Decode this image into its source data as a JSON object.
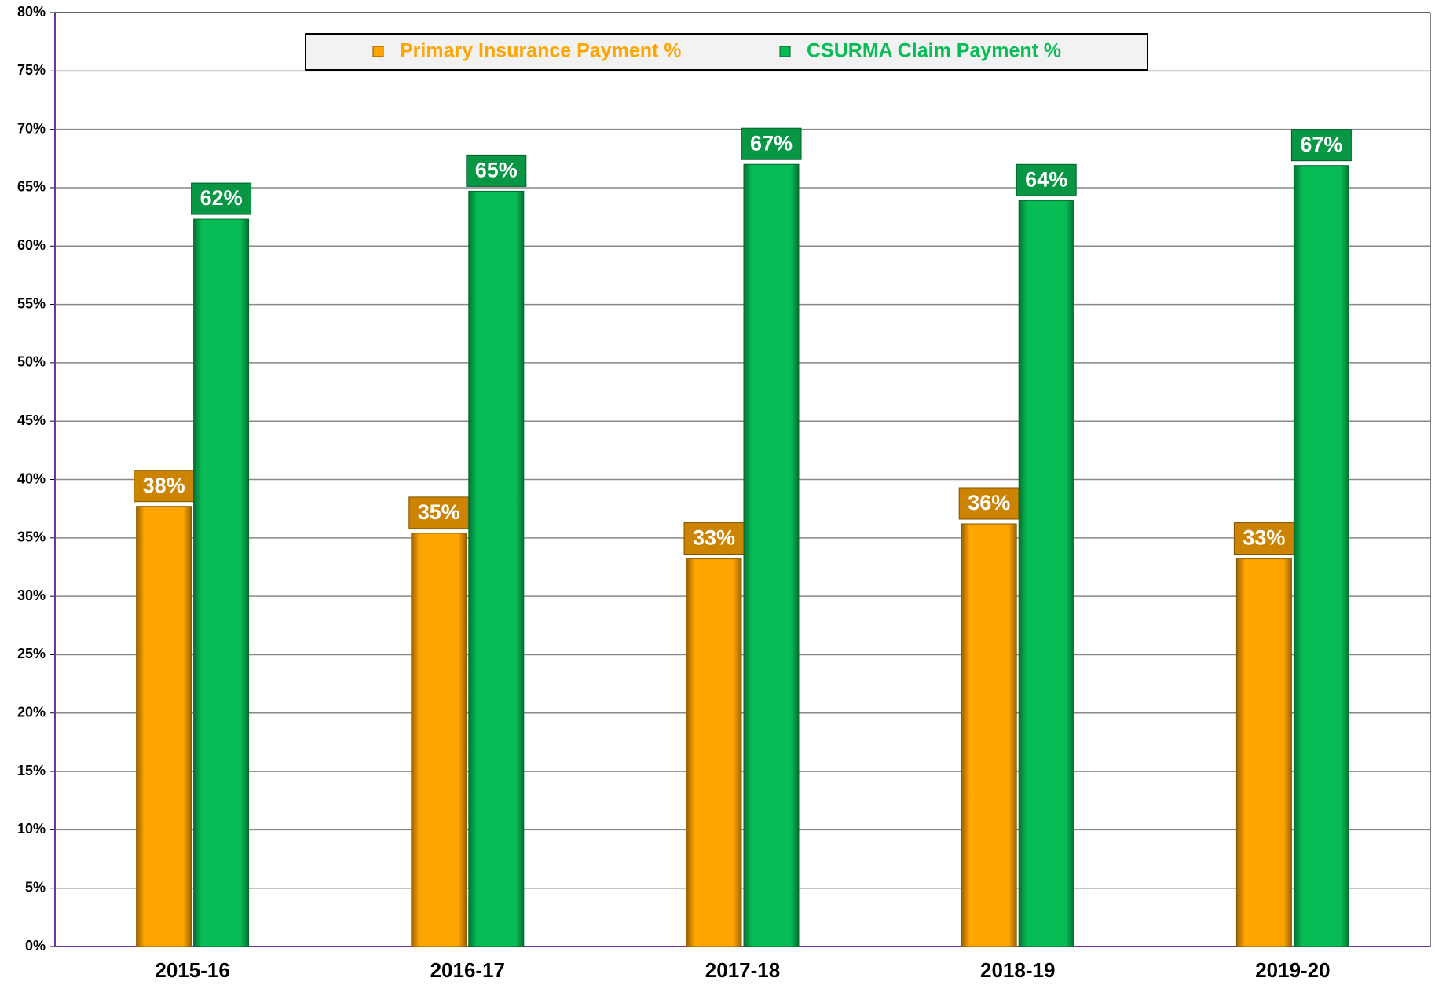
{
  "chart_data": {
    "type": "bar",
    "categories": [
      "2015-16",
      "2016-17",
      "2017-18",
      "2018-19",
      "2019-20"
    ],
    "series": [
      {
        "name": "Primary Insurance Payment %",
        "color": "#ffa500",
        "values": [
          37.7,
          35.4,
          33.2,
          36.2,
          33.2
        ],
        "value_labels": [
          "38%",
          "35%",
          "33%",
          "36%",
          "33%"
        ]
      },
      {
        "name": "CSURMA Claim Payment %",
        "color": "#07bc55",
        "values": [
          62.3,
          64.7,
          67.0,
          63.9,
          66.9
        ],
        "value_labels": [
          "62%",
          "65%",
          "67%",
          "64%",
          "67%"
        ]
      }
    ],
    "ylim": [
      0,
      80
    ],
    "yticks": [
      {
        "value": 0,
        "label": "0%"
      },
      {
        "value": 5,
        "label": "5%"
      },
      {
        "value": 10,
        "label": "10%"
      },
      {
        "value": 15,
        "label": "15%"
      },
      {
        "value": 20,
        "label": "20%"
      },
      {
        "value": 25,
        "label": "25%"
      },
      {
        "value": 30,
        "label": "30%"
      },
      {
        "value": 35,
        "label": "35%"
      },
      {
        "value": 40,
        "label": "40%"
      },
      {
        "value": 45,
        "label": "45%"
      },
      {
        "value": 50,
        "label": "50%"
      },
      {
        "value": 55,
        "label": "55%"
      },
      {
        "value": 60,
        "label": "60%"
      },
      {
        "value": 65,
        "label": "65%"
      },
      {
        "value": 70,
        "label": "70%"
      },
      {
        "value": 75,
        "label": "75%"
      },
      {
        "value": 80,
        "label": "80%"
      }
    ],
    "grid": true,
    "legend": "top"
  }
}
